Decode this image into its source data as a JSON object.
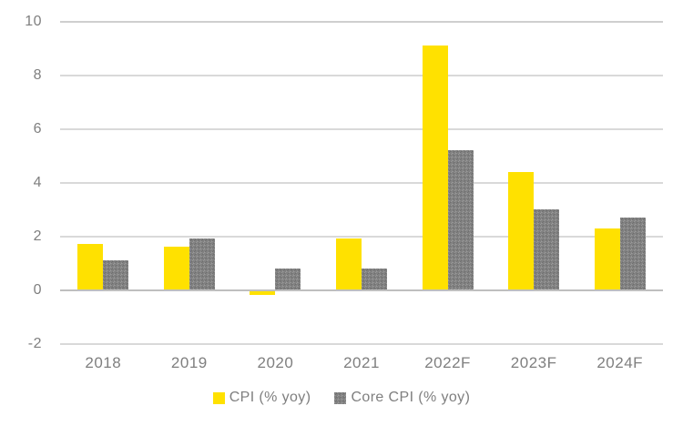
{
  "chart_data": {
    "type": "bar",
    "title": "",
    "categories": [
      "2018",
      "2019",
      "2020",
      "2021",
      "2022F",
      "2023F",
      "2024F"
    ],
    "series": [
      {
        "name": "CPI (% yoy)",
        "color": "#FFE100",
        "values": [
          1.7,
          1.6,
          -0.2,
          1.9,
          9.1,
          4.4,
          2.3
        ]
      },
      {
        "name": "Core CPI (% yoy)",
        "color": "#818181",
        "values": [
          1.1,
          1.9,
          0.8,
          0.8,
          5.2,
          3.0,
          2.7
        ]
      }
    ],
    "y_ticks": [
      10,
      8,
      6,
      4,
      2,
      0,
      -2
    ],
    "ylim": [
      -2,
      10
    ],
    "grid": true,
    "legend_position": "bottom",
    "colors": {
      "axis_text": "#7F7F7F",
      "gridline": "#D9D9D9",
      "top_gridline": "#CFCFCF",
      "zero_line": "#BFBFBF",
      "background": "#FFFFFF"
    }
  }
}
